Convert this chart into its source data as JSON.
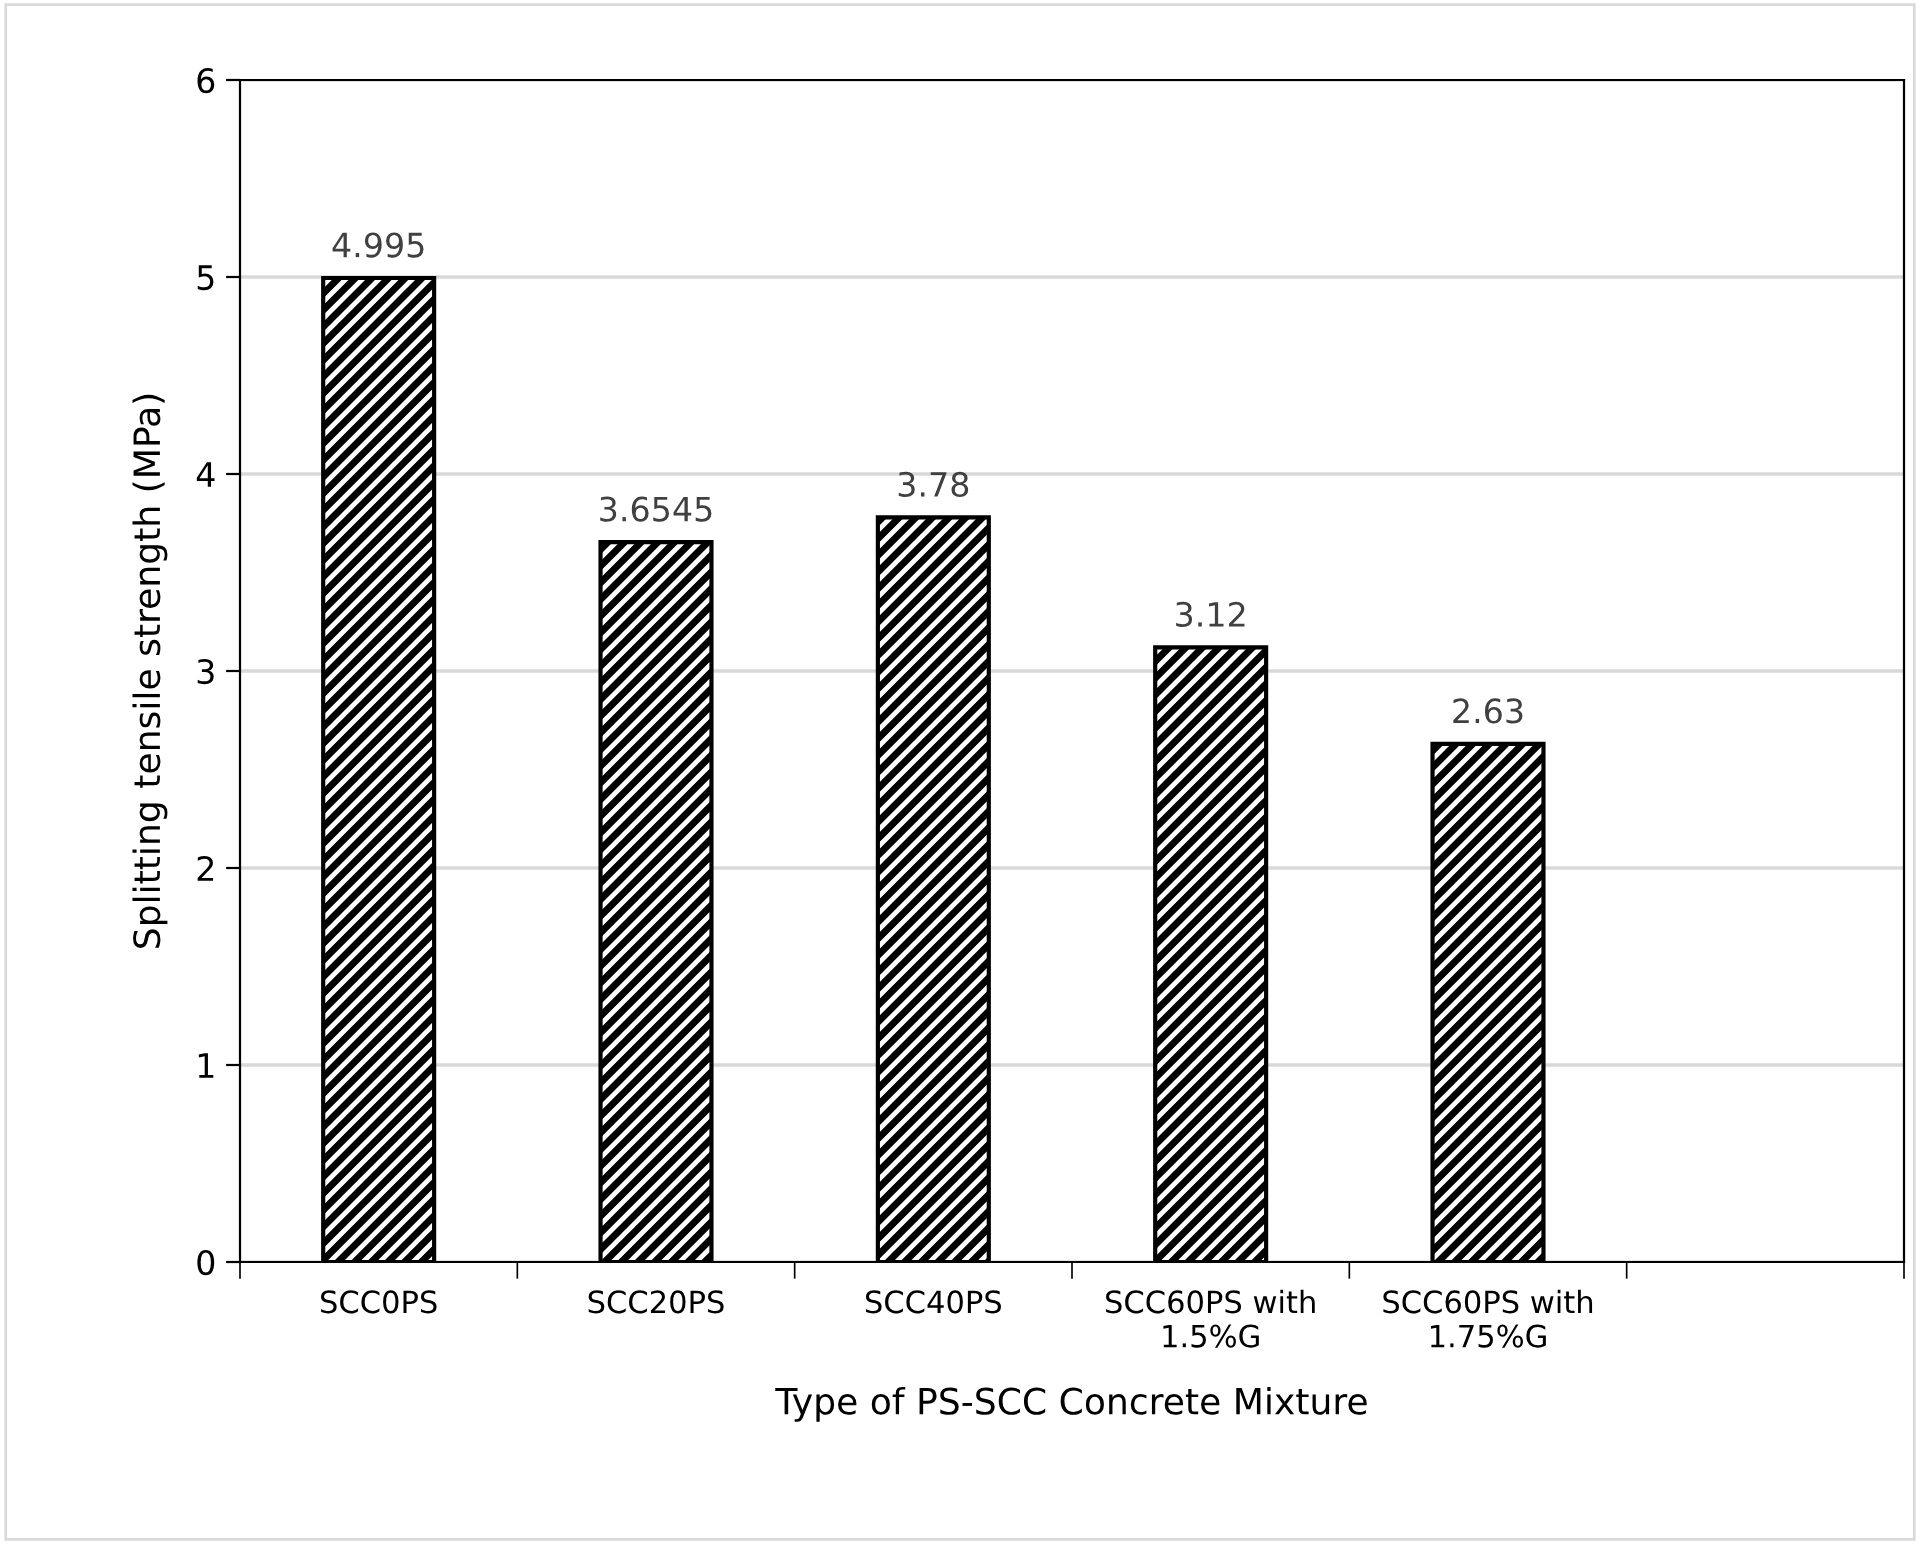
{
  "chart_data": {
    "type": "bar",
    "categories": [
      "SCC0PS",
      "SCC20PS",
      "SCC40PS",
      "SCC60PS with\n1.5%G",
      "SCC60PS with\n1.75%G",
      null
    ],
    "values": [
      4.995,
      3.6545,
      3.78,
      3.12,
      2.63,
      null
    ],
    "color": "#000000",
    "xlabel": "Type of PS-SCC Concrete Mixture",
    "ylabel": "Splitting tensile strength (MPa)",
    "ylim": [
      0,
      6
    ],
    "yticks": [
      0,
      1,
      2,
      3,
      4,
      5,
      6
    ],
    "grid": "y",
    "data_labels": true
  }
}
